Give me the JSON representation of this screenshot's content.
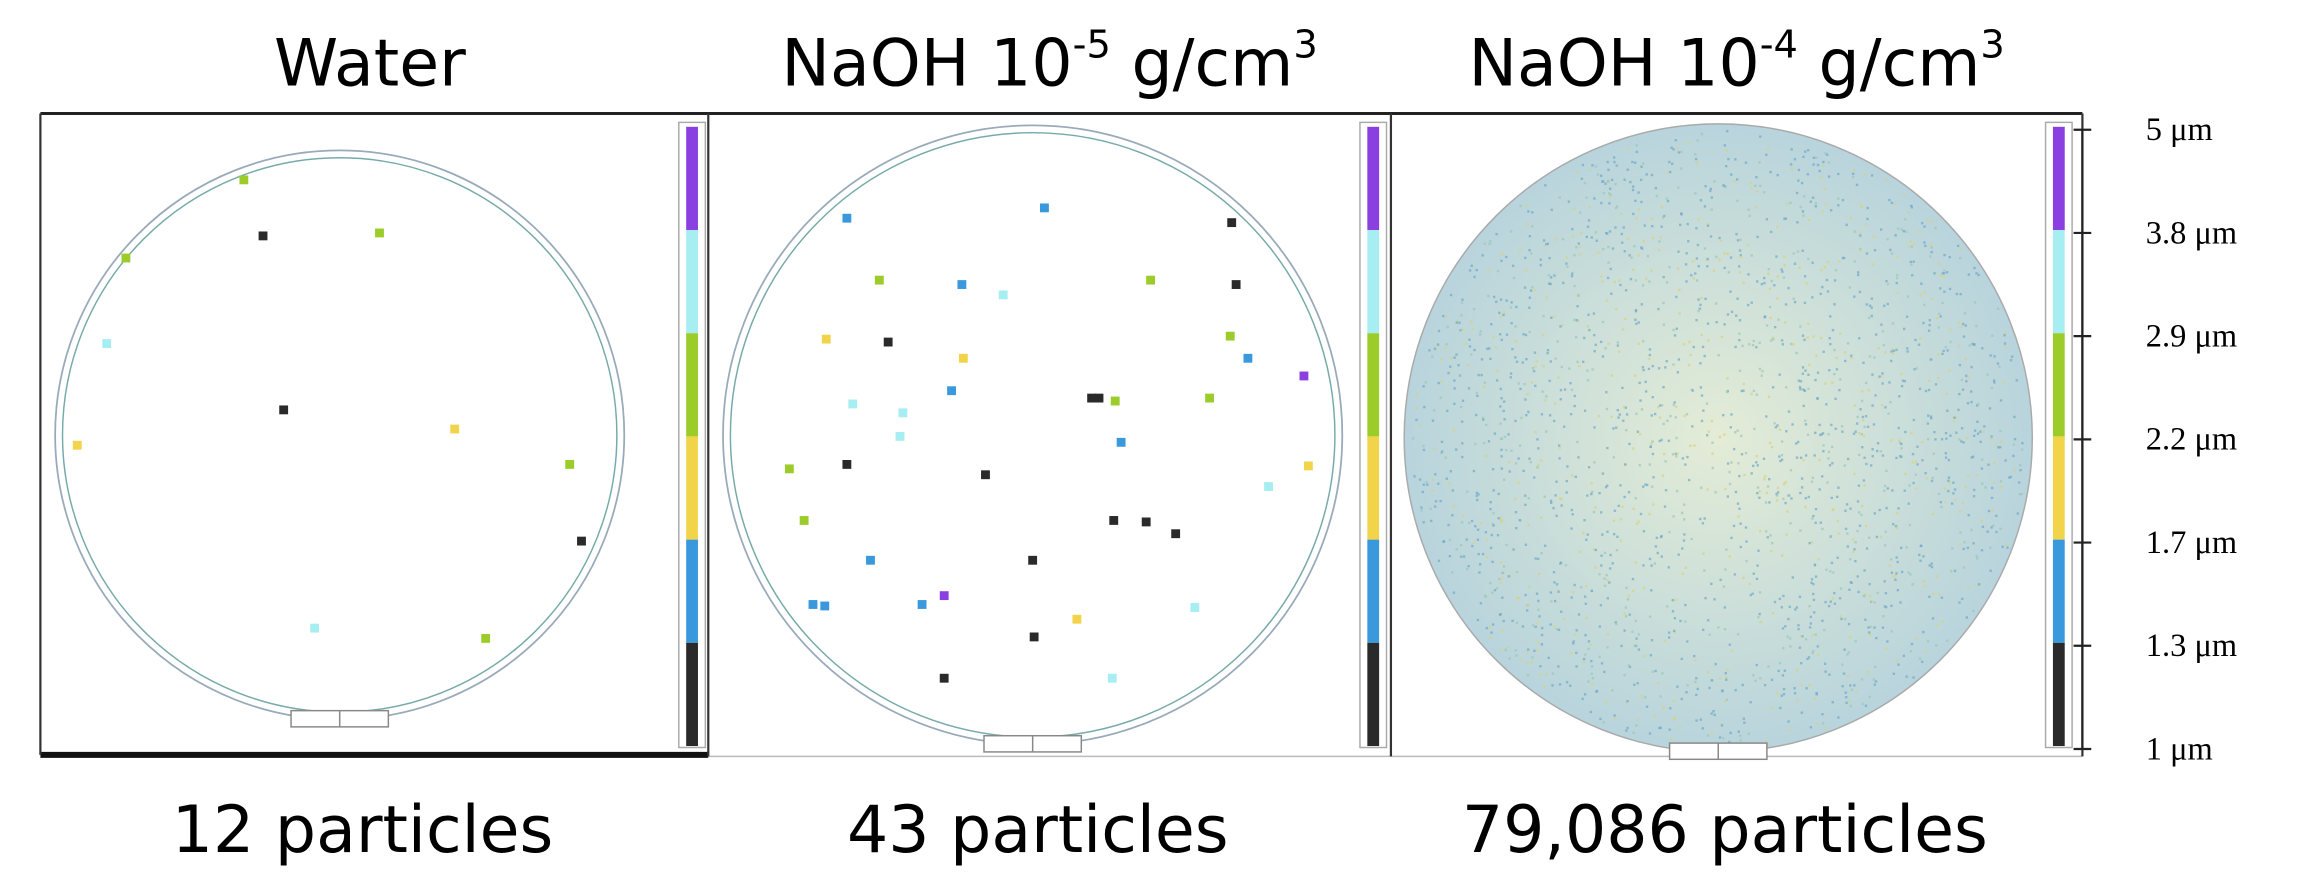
{
  "panels": [
    {
      "title_parts": [
        "Water"
      ],
      "count": "12 particles"
    },
    {
      "title_parts": [
        "NaOH 10",
        "-5",
        " g/cm",
        "3"
      ],
      "count": "43 particles"
    },
    {
      "title_parts": [
        "NaOH 10",
        "-4",
        " g/cm",
        "3"
      ],
      "count": "79,086 particles"
    }
  ],
  "scale": {
    "labels": [
      "5 μm",
      "3.8 μm",
      "2.9 μm",
      "2.2 μm",
      "1.7 μm",
      "1.3 μm",
      "1 μm"
    ],
    "colors": [
      "#8a3fe0",
      "#a6eef2",
      "#9ccc2a",
      "#f2d44a",
      "#3a98dc",
      "#2a2a2a"
    ]
  }
}
